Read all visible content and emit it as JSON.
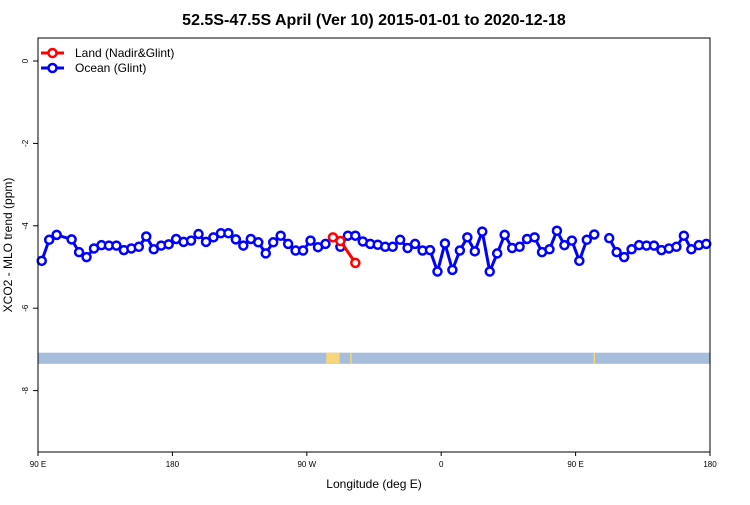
{
  "chart_data": {
    "type": "line",
    "title": "52.5S-47.5S April (Ver 10)   2015-01-01 to 2020-12-18",
    "xlabel": "Longitude (deg E)",
    "ylabel": "XCO2 - MLO trend (ppm)",
    "xlim": [
      90,
      540
    ],
    "ylim": [
      -9.3,
      0.55
    ],
    "xticks": [
      {
        "v": 90,
        "label": "90 E"
      },
      {
        "v": 180,
        "label": "180"
      },
      {
        "v": 270,
        "label": "90 W"
      },
      {
        "v": 360,
        "label": "0"
      },
      {
        "v": 450,
        "label": "90 E"
      },
      {
        "v": 540,
        "label": "180"
      }
    ],
    "yticks": [
      {
        "v": 0,
        "label": "0"
      },
      {
        "v": -2,
        "label": "-2"
      },
      {
        "v": -4,
        "label": "-4"
      },
      {
        "v": -6,
        "label": "-6"
      },
      {
        "v": -8,
        "label": "-8"
      }
    ],
    "legend_position": "top-left",
    "series": [
      {
        "name": "Land (Nadir&Glint)",
        "color": "#ff0000",
        "x": [
          287.5,
          292.5,
          302.5
        ],
        "y": [
          -4.28,
          -4.37,
          -4.9
        ]
      },
      {
        "name": "Ocean (Glint)",
        "color": "#0000ff",
        "x": [
          92.5,
          97.5,
          102.5,
          112.5,
          117.5,
          122.5,
          127.5,
          132.5,
          137.5,
          142.5,
          147.5,
          152.5,
          157.5,
          162.5,
          167.5,
          172.5,
          177.5,
          182.5,
          187.5,
          192.5,
          197.5,
          202.5,
          207.5,
          212.5,
          217.5,
          222.5,
          227.5,
          232.5,
          237.5,
          242.5,
          247.5,
          252.5,
          257.5,
          262.5,
          267.5,
          272.5,
          277.5,
          282.5,
          287.5,
          292.5,
          297.5,
          302.5,
          307.5,
          312.5,
          317.5,
          322.5,
          327.5,
          332.5,
          337.5,
          342.5,
          347.5,
          352.5,
          357.5,
          362.5,
          367.5,
          372.5,
          377.5,
          382.5,
          387.5,
          392.5,
          397.5,
          402.5,
          407.5,
          412.5,
          417.5,
          422.5,
          427.5,
          432.5,
          437.5,
          442.5,
          447.5,
          452.5,
          457.5,
          462.5,
          467.5,
          472.5,
          477.5,
          482.5,
          487.5,
          492.5,
          497.5,
          502.5,
          507.5,
          512.5,
          517.5,
          522.5,
          527.5,
          532.5,
          537.5
        ],
        "y": [
          -4.85,
          -4.34,
          -4.22,
          -4.33,
          -4.64,
          -4.76,
          -4.55,
          -4.47,
          -4.48,
          -4.48,
          -4.59,
          -4.55,
          -4.51,
          -4.26,
          -4.57,
          -4.48,
          -4.45,
          -4.32,
          -4.39,
          -4.36,
          -4.2,
          -4.39,
          -4.28,
          -4.18,
          -4.18,
          -4.33,
          -4.48,
          -4.32,
          -4.4,
          -4.67,
          -4.4,
          -4.24,
          -4.44,
          -4.6,
          -4.6,
          -4.36,
          -4.52,
          -4.44,
          null,
          -4.51,
          -4.24,
          -4.24,
          -4.38,
          -4.44,
          -4.46,
          -4.51,
          -4.51,
          -4.34,
          -4.54,
          -4.44,
          -4.6,
          -4.59,
          -5.11,
          -4.43,
          -5.07,
          -4.6,
          -4.28,
          -4.62,
          -4.14,
          -5.11,
          -4.67,
          -4.22,
          -4.54,
          -4.51,
          -4.32,
          -4.28,
          -4.64,
          -4.57,
          -4.12,
          -4.47,
          -4.36,
          -4.85,
          -4.34,
          -4.21,
          null,
          -4.3,
          -4.64,
          -4.76,
          -4.57,
          -4.47,
          -4.48,
          -4.48,
          -4.59,
          -4.55,
          -4.51,
          -4.24,
          -4.57,
          -4.47,
          -4.44
        ]
      }
    ],
    "map_strip": {
      "ocean_color": "#a6bddb",
      "land_color": "#f7d57a",
      "y_range": [
        -7.35,
        -7.08
      ],
      "land_x": [
        [
          283,
          292
        ],
        [
          299,
          300
        ],
        [
          462,
          463
        ]
      ]
    }
  }
}
